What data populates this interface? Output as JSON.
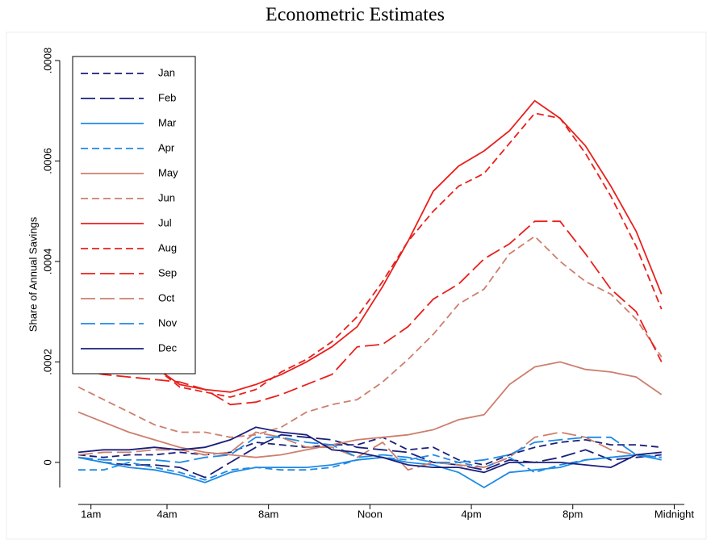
{
  "chart_data": {
    "type": "line",
    "title": "Econometric Estimates",
    "y_label": "Share of Annual Savings",
    "x": [
      0.5,
      1.5,
      2.5,
      3.5,
      4.5,
      5.5,
      6.5,
      7.5,
      8.5,
      9.5,
      10.5,
      11.5,
      12.5,
      13.5,
      14.5,
      15.5,
      16.5,
      17.5,
      18.5,
      19.5,
      20.5,
      21.5,
      22.5,
      23.5
    ],
    "xlim": [
      0.5,
      24.4
    ],
    "xticks": [
      {
        "value": 1,
        "label": "1am"
      },
      {
        "value": 4,
        "label": "4am"
      },
      {
        "value": 8,
        "label": "8am"
      },
      {
        "value": 12,
        "label": "Noon"
      },
      {
        "value": 16,
        "label": "4pm"
      },
      {
        "value": 20,
        "label": "8pm"
      },
      {
        "value": 24,
        "label": "Midnight"
      }
    ],
    "ylim": [
      -5e-05,
      0.0008
    ],
    "yticks": [
      0,
      {
        "value": 0.0002,
        "label": ".0002"
      },
      {
        "value": 0.0004,
        "label": ".0004"
      },
      {
        "value": 0.0006,
        "label": ".0006"
      },
      {
        "value": 0.0008,
        "label": ".0008"
      }
    ],
    "grid": false,
    "legend": "top-left",
    "series": [
      {
        "name": "Jan",
        "color": "#1a1f7a",
        "line_style": "dash",
        "values": [
          1.5e-05,
          1e-05,
          1.5e-05,
          1.5e-05,
          2e-05,
          1.5e-05,
          2e-05,
          4e-05,
          3.5e-05,
          3e-05,
          3.5e-05,
          3.5e-05,
          5e-05,
          2.5e-05,
          3e-05,
          5e-06,
          -5e-06,
          1.5e-05,
          3e-05,
          4e-05,
          4.5e-05,
          3.5e-05,
          3.5e-05,
          3e-05
        ]
      },
      {
        "name": "Feb",
        "color": "#1a1f7a",
        "line_style": "longdash",
        "values": [
          1e-05,
          0,
          -5e-06,
          -5e-06,
          -1e-05,
          -3e-05,
          0,
          3e-05,
          5.5e-05,
          5e-05,
          4.5e-05,
          3e-05,
          2.5e-05,
          2e-05,
          0,
          -5e-06,
          -1.5e-05,
          5e-06,
          0,
          1e-05,
          2.5e-05,
          5e-06,
          1e-05,
          1.5e-05
        ]
      },
      {
        "name": "Mar",
        "color": "#1e8ae6",
        "line_style": "solid",
        "values": [
          1e-05,
          0,
          -1e-05,
          -1.5e-05,
          -2.5e-05,
          -4e-05,
          -2e-05,
          -1e-05,
          -1e-05,
          -1e-05,
          -5e-06,
          5e-06,
          1e-05,
          0,
          -5e-06,
          -2e-05,
          -5e-05,
          -2e-05,
          -1.5e-05,
          -1e-05,
          5e-06,
          1e-05,
          1.5e-05,
          5e-06
        ]
      },
      {
        "name": "Apr",
        "color": "#1e8ae6",
        "line_style": "dash",
        "values": [
          -1.5e-05,
          -1.5e-05,
          0,
          -1e-05,
          -2e-05,
          -3.5e-05,
          -1.5e-05,
          -1e-05,
          -1.5e-05,
          -1.5e-05,
          -1e-05,
          5e-06,
          1e-05,
          5e-06,
          1.5e-05,
          0,
          -1e-05,
          1e-05,
          -2e-05,
          -5e-06,
          5e-06,
          1e-05,
          1.5e-05,
          1e-05
        ]
      },
      {
        "name": "May",
        "color": "#cd7f6e",
        "line_style": "solid",
        "values": [
          0.0001,
          8e-05,
          6e-05,
          4.5e-05,
          3e-05,
          2e-05,
          1.5e-05,
          1e-05,
          1.5e-05,
          2.5e-05,
          3.5e-05,
          4.5e-05,
          5e-05,
          5.5e-05,
          6.5e-05,
          8.5e-05,
          9.5e-05,
          0.000155,
          0.00019,
          0.0002,
          0.000185,
          0.00018,
          0.00017,
          0.000135
        ]
      },
      {
        "name": "Jun",
        "color": "#cd7f6e",
        "line_style": "dash",
        "values": [
          0.00015,
          0.000125,
          0.0001,
          7.5e-05,
          6e-05,
          6e-05,
          5e-05,
          5.5e-05,
          7e-05,
          0.0001,
          0.000115,
          0.000125,
          0.00016,
          0.000205,
          0.000255,
          0.000315,
          0.000345,
          0.000415,
          0.00045,
          0.0004,
          0.00036,
          0.000335,
          0.000285,
          0.00021
        ]
      },
      {
        "name": "Jul",
        "color": "#e8201c",
        "line_style": "solid",
        "values": [
          0.0002,
          0.0002,
          0.000195,
          0.00019,
          0.000155,
          0.000145,
          0.00014,
          0.000155,
          0.000175,
          0.0002,
          0.00023,
          0.00027,
          0.00035,
          0.00044,
          0.00054,
          0.00059,
          0.00062,
          0.00066,
          0.00072,
          0.000685,
          0.00063,
          0.00055,
          0.00046,
          0.000335
        ]
      },
      {
        "name": "Aug",
        "color": "#e8201c",
        "line_style": "dash",
        "values": [
          0.0002,
          0.0002,
          0.000195,
          0.00019,
          0.00015,
          0.00014,
          0.00013,
          0.000145,
          0.00018,
          0.000205,
          0.00024,
          0.00029,
          0.00036,
          0.00044,
          0.0005,
          0.00055,
          0.000575,
          0.000635,
          0.000695,
          0.000685,
          0.000615,
          0.00053,
          0.00043,
          0.000305
        ]
      },
      {
        "name": "Sep",
        "color": "#e8201c",
        "line_style": "longdash",
        "values": [
          0.000185,
          0.000175,
          0.00017,
          0.000165,
          0.00016,
          0.000145,
          0.000115,
          0.00012,
          0.000135,
          0.000155,
          0.000175,
          0.00023,
          0.000235,
          0.00027,
          0.000325,
          0.000355,
          0.000405,
          0.000435,
          0.00048,
          0.00048,
          0.000415,
          0.000345,
          0.0003,
          0.0002
        ]
      },
      {
        "name": "Oct",
        "color": "#cd7f6e",
        "line_style": "longdash",
        "values": [
          1.5e-05,
          2e-05,
          2e-05,
          2.5e-05,
          2.5e-05,
          1.5e-05,
          2e-05,
          6e-05,
          5e-05,
          3e-05,
          3e-05,
          1e-05,
          4e-05,
          -1.5e-05,
          0,
          -5e-06,
          -1e-05,
          1e-05,
          5e-05,
          6e-05,
          5e-05,
          2.5e-05,
          1.5e-05,
          2e-05
        ]
      },
      {
        "name": "Nov",
        "color": "#1e8ae6",
        "line_style": "longdash",
        "values": [
          1e-05,
          5e-06,
          5e-06,
          5e-06,
          0,
          1e-05,
          1.5e-05,
          5e-05,
          5e-05,
          4e-05,
          3.5e-05,
          1e-05,
          1.5e-05,
          1e-05,
          0,
          0,
          5e-06,
          1.5e-05,
          4e-05,
          4.5e-05,
          5e-05,
          5e-05,
          1.5e-05,
          1e-05
        ]
      },
      {
        "name": "Dec",
        "color": "#1a1f7a",
        "line_style": "solid",
        "values": [
          2e-05,
          2.5e-05,
          2.5e-05,
          3e-05,
          2.5e-05,
          3e-05,
          4.5e-05,
          7e-05,
          6e-05,
          5.5e-05,
          2.5e-05,
          2e-05,
          1e-05,
          -5e-06,
          -1e-05,
          -1e-05,
          -2e-05,
          0,
          0,
          0,
          -5e-06,
          -1e-05,
          1.5e-05,
          2e-05
        ]
      }
    ]
  }
}
